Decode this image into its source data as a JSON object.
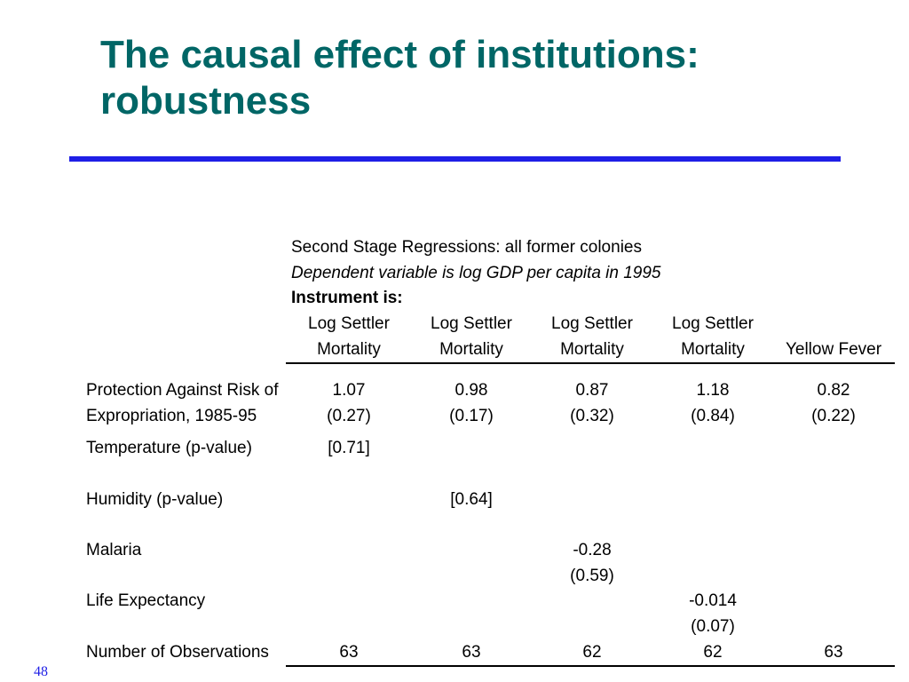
{
  "slide": {
    "title_line1": "The causal effect of institutions:",
    "title_line2": "robustness",
    "accent_color": "#006666",
    "rule_color": "#1f1fe6",
    "page_number": "48"
  },
  "table": {
    "caption": "Second Stage Regressions: all former colonies",
    "dependent": "Dependent variable is log GDP per capita in 1995",
    "instrument_label": "Instrument is:",
    "columns": [
      {
        "line1": "Log Settler",
        "line2": "Mortality"
      },
      {
        "line1": "Log Settler",
        "line2": "Mortality"
      },
      {
        "line1": "Log Settler",
        "line2": "Mortality"
      },
      {
        "line1": "Log Settler",
        "line2": "Mortality"
      },
      {
        "line1": "",
        "line2": "Yellow Fever"
      }
    ],
    "rows": {
      "protection": {
        "label1": "Protection Against Risk of",
        "label2": "Expropriation, 1985-95",
        "coef": [
          "1.07",
          "0.98",
          "0.87",
          "1.18",
          "0.82"
        ],
        "se": [
          "(0.27)",
          "(0.17)",
          "(0.32)",
          "(0.84)",
          "(0.22)"
        ]
      },
      "temperature": {
        "label": "Temperature (p-value)",
        "c1": "[0.71]"
      },
      "humidity": {
        "label": "Humidity (p-value)",
        "c2": "[0.64]"
      },
      "malaria": {
        "label": "Malaria",
        "coef": "-0.28",
        "se": "(0.59)"
      },
      "life": {
        "label": "Life Expectancy",
        "coef": "-0.014",
        "se": "(0.07)"
      },
      "obs": {
        "label": "Number of Observations",
        "values": [
          "63",
          "63",
          "62",
          "62",
          "63"
        ]
      }
    }
  }
}
